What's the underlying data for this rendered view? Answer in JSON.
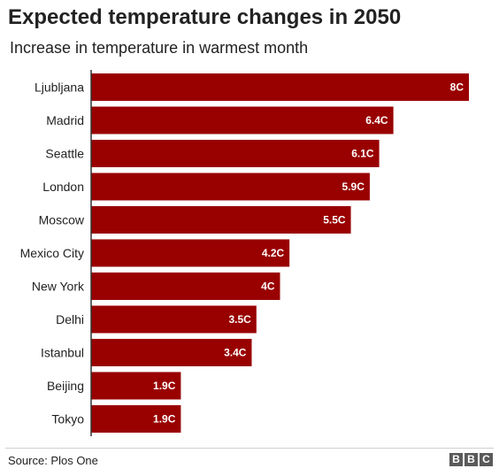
{
  "chart_data": {
    "type": "bar",
    "orientation": "horizontal",
    "title": "Expected temperature changes in 2050",
    "subtitle": "Increase in temperature in warmest month",
    "categories": [
      "Ljubljana",
      "Madrid",
      "Seattle",
      "London",
      "Moscow",
      "Mexico City",
      "New York",
      "Delhi",
      "Istanbul",
      "Beijing",
      "Tokyo"
    ],
    "values": [
      8,
      6.4,
      6.1,
      5.9,
      5.5,
      4.2,
      4,
      3.5,
      3.4,
      1.9,
      1.9
    ],
    "value_labels": [
      "8C",
      "6.4C",
      "6.1C",
      "5.9C",
      "5.5C",
      "4.2C",
      "4C",
      "3.5C",
      "3.4C",
      "1.9C",
      "1.9C"
    ],
    "xlim": [
      0,
      8
    ],
    "bar_color": "#990000",
    "grid": false
  },
  "footer": {
    "source": "Source: Plos One",
    "brand_letters": [
      "B",
      "B",
      "C"
    ]
  }
}
